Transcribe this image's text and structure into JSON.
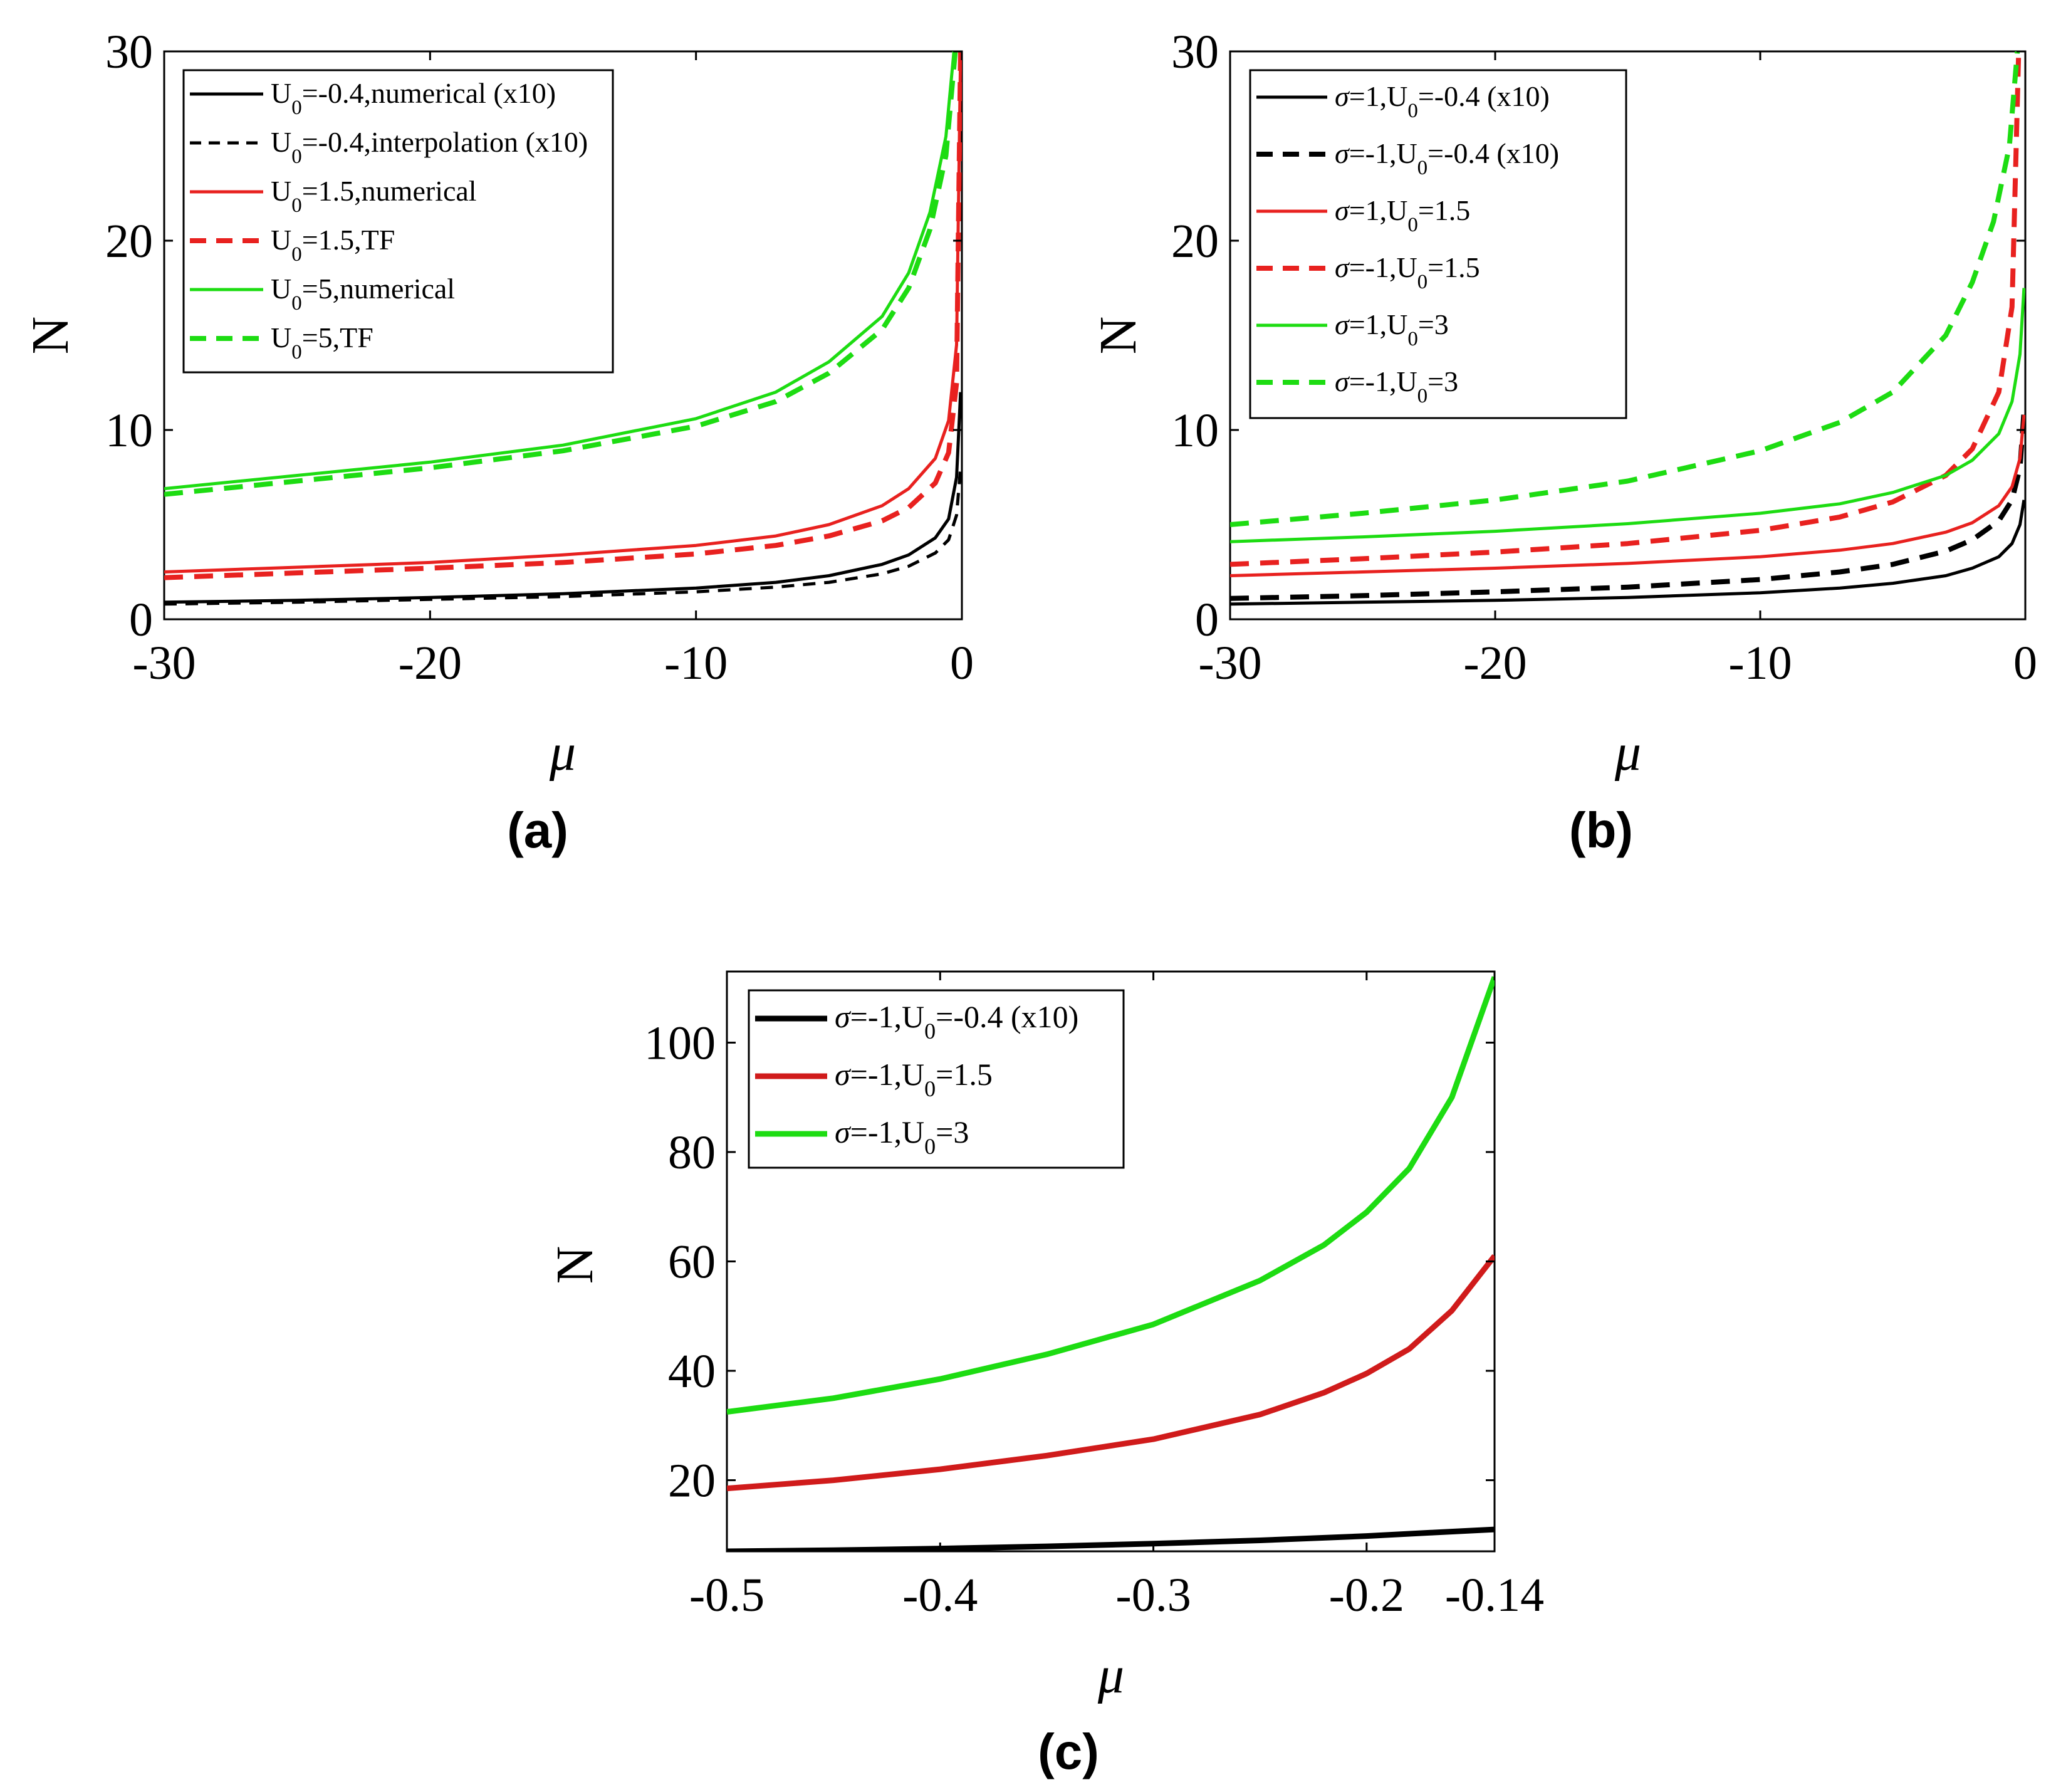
{
  "chart_data": [
    {
      "panel": "a",
      "type": "line",
      "panel_label": "(a)",
      "xlabel": "μ",
      "ylabel": "N",
      "xlim": [
        -30,
        0
      ],
      "ylim": [
        0,
        30
      ],
      "xticks": [
        -30,
        -20,
        -10,
        0
      ],
      "yticks": [
        0,
        10,
        20,
        30
      ],
      "legend_position": "top-left",
      "series": [
        {
          "name": "U_0=-0.4,numerical (x10)",
          "legend_main": "U",
          "legend_sub": "0",
          "legend_rest": "=-0.4,numerical (x10)",
          "color": "#000000",
          "dash": "solid",
          "width": 5,
          "x": [
            -30,
            -25,
            -20,
            -15,
            -10,
            -7,
            -5,
            -3,
            -2,
            -1,
            -0.5,
            -0.2,
            -0.05
          ],
          "y": [
            0.9,
            1.0,
            1.15,
            1.35,
            1.65,
            1.95,
            2.3,
            2.9,
            3.4,
            4.3,
            5.3,
            7.5,
            12.0
          ]
        },
        {
          "name": "U_0=-0.4,interpolation (x10)",
          "legend_main": "U",
          "legend_sub": "0",
          "legend_rest": "=-0.4,interpolation (x10)",
          "color": "#000000",
          "dash": "dashed",
          "width": 5,
          "x": [
            -30,
            -25,
            -20,
            -15,
            -10,
            -7,
            -5,
            -3,
            -2,
            -1,
            -0.5,
            -0.2,
            -0.05
          ],
          "y": [
            0.8,
            0.9,
            1.05,
            1.2,
            1.45,
            1.7,
            1.95,
            2.4,
            2.8,
            3.5,
            4.2,
            5.5,
            8.0
          ]
        },
        {
          "name": "U_0=1.5,numerical",
          "legend_main": "U",
          "legend_sub": "0",
          "legend_rest": "=1.5,numerical",
          "color": "#e8211f",
          "dash": "solid",
          "width": 5,
          "x": [
            -30,
            -25,
            -20,
            -15,
            -10,
            -7,
            -5,
            -3,
            -2,
            -1,
            -0.5,
            -0.2,
            -0.05
          ],
          "y": [
            2.5,
            2.75,
            3.0,
            3.4,
            3.9,
            4.4,
            5.0,
            6.0,
            6.9,
            8.5,
            10.5,
            14.5,
            30.0
          ]
        },
        {
          "name": "U_0=1.5,TF",
          "legend_main": "U",
          "legend_sub": "0",
          "legend_rest": "=1.5,TF",
          "color": "#e8211f",
          "dash": "dashed",
          "width": 8,
          "x": [
            -30,
            -25,
            -20,
            -15,
            -10,
            -7,
            -5,
            -3,
            -2,
            -1,
            -0.5,
            -0.2,
            -0.05
          ],
          "y": [
            2.2,
            2.45,
            2.7,
            3.0,
            3.45,
            3.9,
            4.4,
            5.2,
            5.9,
            7.2,
            8.8,
            12.5,
            30.0
          ]
        },
        {
          "name": "U_0=5,numerical",
          "legend_main": "U",
          "legend_sub": "0",
          "legend_rest": "=5,numerical",
          "color": "#1ddc12",
          "dash": "solid",
          "width": 5,
          "x": [
            -30,
            -25,
            -20,
            -15,
            -10,
            -7,
            -5,
            -3,
            -2,
            -1.2,
            -0.6,
            -0.3
          ],
          "y": [
            6.9,
            7.6,
            8.3,
            9.2,
            10.6,
            12.0,
            13.6,
            16.0,
            18.3,
            21.5,
            25.5,
            30.0
          ]
        },
        {
          "name": "U_0=5,TF",
          "legend_main": "U",
          "legend_sub": "0",
          "legend_rest": "=5,TF",
          "color": "#1ddc12",
          "dash": "dashed",
          "width": 8,
          "x": [
            -30,
            -25,
            -20,
            -15,
            -10,
            -7,
            -5,
            -3,
            -2,
            -1.2,
            -0.6,
            -0.25
          ],
          "y": [
            6.6,
            7.3,
            8.0,
            8.9,
            10.2,
            11.5,
            13.0,
            15.3,
            17.5,
            20.6,
            24.5,
            30.0
          ]
        }
      ]
    },
    {
      "panel": "b",
      "type": "line",
      "panel_label": "(b)",
      "xlabel": "μ",
      "ylabel": "N",
      "xlim": [
        -30,
        0
      ],
      "ylim": [
        0,
        30
      ],
      "xticks": [
        -30,
        -20,
        -10,
        0
      ],
      "yticks": [
        0,
        10,
        20,
        30
      ],
      "legend_position": "top-left",
      "series": [
        {
          "name": "σ=1,U_0=-0.4 (x10)",
          "legend_main": "σ=1,U",
          "legend_sub": "0",
          "legend_rest": "=-0.4 (x10)",
          "color": "#000000",
          "dash": "solid",
          "width": 5,
          "x": [
            -30,
            -25,
            -20,
            -15,
            -10,
            -7,
            -5,
            -3,
            -2,
            -1,
            -0.5,
            -0.2,
            -0.05
          ],
          "y": [
            0.8,
            0.9,
            1.0,
            1.15,
            1.4,
            1.65,
            1.9,
            2.3,
            2.7,
            3.3,
            4.0,
            5.0,
            6.3
          ]
        },
        {
          "name": "σ=-1,U_0=-0.4 (x10)",
          "legend_main": "σ=-1,U",
          "legend_sub": "0",
          "legend_rest": "=-0.4 (x10)",
          "color": "#000000",
          "dash": "dashed",
          "width": 8,
          "x": [
            -30,
            -25,
            -20,
            -15,
            -10,
            -7,
            -5,
            -3,
            -2,
            -1,
            -0.5,
            -0.2,
            -0.05
          ],
          "y": [
            1.1,
            1.25,
            1.45,
            1.7,
            2.1,
            2.5,
            2.9,
            3.6,
            4.2,
            5.2,
            6.3,
            8.0,
            11.0
          ]
        },
        {
          "name": "σ=1,U_0=1.5",
          "legend_main": "σ=1,U",
          "legend_sub": "0",
          "legend_rest": "=1.5",
          "color": "#e8211f",
          "dash": "solid",
          "width": 5,
          "x": [
            -30,
            -25,
            -20,
            -15,
            -10,
            -7,
            -5,
            -3,
            -2,
            -1,
            -0.5,
            -0.2,
            -0.05
          ],
          "y": [
            2.3,
            2.5,
            2.7,
            2.95,
            3.3,
            3.65,
            4.0,
            4.6,
            5.1,
            6.0,
            7.0,
            8.5,
            10.8
          ]
        },
        {
          "name": "σ=-1,U_0=1.5",
          "legend_main": "σ=-1,U",
          "legend_sub": "0",
          "legend_rest": "=1.5",
          "color": "#e8211f",
          "dash": "dashed",
          "width": 8,
          "x": [
            -30,
            -25,
            -20,
            -15,
            -10,
            -7,
            -5,
            -3,
            -2,
            -1,
            -0.5,
            -0.25
          ],
          "y": [
            2.9,
            3.2,
            3.55,
            4.0,
            4.7,
            5.4,
            6.2,
            7.6,
            9.0,
            12.0,
            16.5,
            30.0
          ]
        },
        {
          "name": "σ=1,U_0=3",
          "legend_main": "σ=1,U",
          "legend_sub": "0",
          "legend_rest": "=3",
          "color": "#1ddc12",
          "dash": "solid",
          "width": 5,
          "x": [
            -30,
            -25,
            -20,
            -15,
            -10,
            -7,
            -5,
            -3,
            -2,
            -1,
            -0.5,
            -0.2,
            -0.05
          ],
          "y": [
            4.1,
            4.35,
            4.65,
            5.05,
            5.6,
            6.1,
            6.7,
            7.6,
            8.4,
            9.8,
            11.5,
            14.0,
            17.5
          ]
        },
        {
          "name": "σ=-1,U_0=3",
          "legend_main": "σ=-1,U",
          "legend_sub": "0",
          "legend_rest": "=3",
          "color": "#1ddc12",
          "dash": "dashed",
          "width": 8,
          "x": [
            -30,
            -25,
            -20,
            -15,
            -10,
            -7,
            -5,
            -3,
            -2,
            -1.2,
            -0.6,
            -0.3
          ],
          "y": [
            5.0,
            5.6,
            6.3,
            7.3,
            8.9,
            10.4,
            12.0,
            15.0,
            17.8,
            21.0,
            25.0,
            30.0
          ]
        }
      ]
    },
    {
      "panel": "c",
      "type": "line",
      "panel_label": "(c)",
      "xlabel": "μ",
      "ylabel": "N",
      "xlim": [
        -0.5,
        -0.14
      ],
      "ylim": [
        7,
        113
      ],
      "xticks": [
        -0.5,
        -0.4,
        -0.3,
        -0.2,
        -0.14
      ],
      "yticks": [
        20,
        40,
        60,
        80,
        100
      ],
      "legend_position": "top-left",
      "series": [
        {
          "name": "σ=-1,U_0=-0.4 (x10)",
          "legend_main": "σ=-1,U",
          "legend_sub": "0",
          "legend_rest": "=-0.4 (x10)",
          "color": "#000000",
          "dash": "solid",
          "width": 9,
          "x": [
            -0.5,
            -0.45,
            -0.4,
            -0.35,
            -0.3,
            -0.25,
            -0.2,
            -0.17,
            -0.14
          ],
          "y": [
            7.0,
            7.2,
            7.5,
            7.9,
            8.4,
            9.0,
            9.8,
            10.4,
            11.0
          ]
        },
        {
          "name": "σ=-1,U_0=1.5",
          "legend_main": "σ=-1,U",
          "legend_sub": "0",
          "legend_rest": "=1.5",
          "color": "#d01b1b",
          "dash": "solid",
          "width": 9,
          "x": [
            -0.5,
            -0.45,
            -0.4,
            -0.35,
            -0.3,
            -0.25,
            -0.22,
            -0.2,
            -0.18,
            -0.16,
            -0.14
          ],
          "y": [
            18.5,
            20.0,
            22.0,
            24.5,
            27.5,
            32.0,
            36.0,
            39.5,
            44.0,
            51.0,
            61.0
          ]
        },
        {
          "name": "σ=-1,U_0=3",
          "legend_main": "σ=-1,U",
          "legend_sub": "0",
          "legend_rest": "=3",
          "color": "#1ddc12",
          "dash": "solid",
          "width": 9,
          "x": [
            -0.5,
            -0.45,
            -0.4,
            -0.35,
            -0.3,
            -0.25,
            -0.22,
            -0.2,
            -0.18,
            -0.16,
            -0.14
          ],
          "y": [
            32.5,
            35.0,
            38.5,
            43.0,
            48.5,
            56.5,
            63.0,
            69.0,
            77.0,
            90.0,
            112.0
          ]
        }
      ]
    }
  ]
}
